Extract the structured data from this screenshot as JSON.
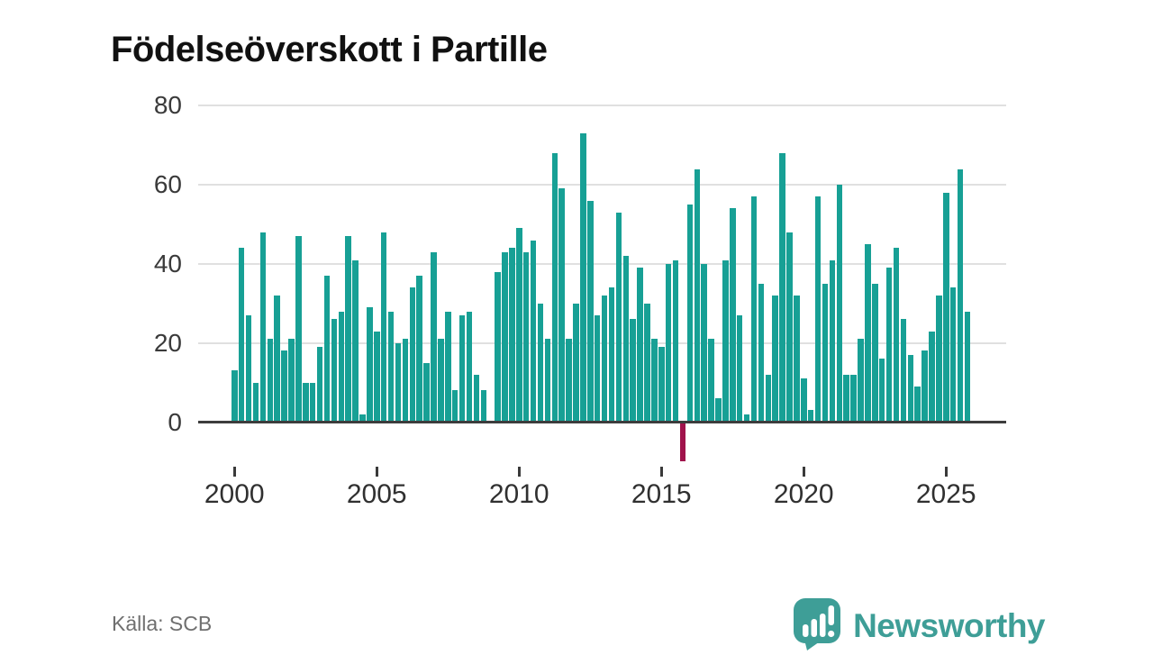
{
  "title": "Födelseöverskott i Partille",
  "source": "Källa: SCB",
  "brand": {
    "name": "Newsworthy"
  },
  "chart_data": {
    "type": "bar",
    "title": "Födelseöverskott i Partille",
    "xlabel": "",
    "ylabel": "",
    "frequency": "quarterly",
    "start_period": "2000 Q1",
    "x_tick_labels": [
      "2000",
      "2005",
      "2010",
      "2015",
      "2020",
      "2025"
    ],
    "y_ticks": [
      0,
      20,
      40,
      60,
      80
    ],
    "ylim": [
      -12,
      85
    ],
    "grid": "horizontal",
    "legend": "none",
    "colors": {
      "positive": "#17a095",
      "negative": "#a0134b"
    },
    "series": [
      {
        "name": "Födelseöverskott",
        "years": [
          {
            "year": 2000,
            "values": [
              13,
              44,
              27,
              10
            ]
          },
          {
            "year": 2001,
            "values": [
              48,
              21,
              32,
              18
            ]
          },
          {
            "year": 2002,
            "values": [
              21,
              47,
              10,
              10
            ]
          },
          {
            "year": 2003,
            "values": [
              19,
              37,
              26,
              28
            ]
          },
          {
            "year": 2004,
            "values": [
              47,
              41,
              2,
              29
            ]
          },
          {
            "year": 2005,
            "values": [
              23,
              48,
              28,
              20
            ]
          },
          {
            "year": 2006,
            "values": [
              21,
              34,
              37,
              15
            ]
          },
          {
            "year": 2007,
            "values": [
              43,
              21,
              28,
              8
            ]
          },
          {
            "year": 2008,
            "values": [
              27,
              28,
              12,
              8
            ]
          },
          {
            "year": 2009,
            "values": [
              0,
              38,
              43,
              44
            ]
          },
          {
            "year": 2010,
            "values": [
              49,
              43,
              46,
              30
            ]
          },
          {
            "year": 2011,
            "values": [
              21,
              68,
              59,
              21
            ]
          },
          {
            "year": 2012,
            "values": [
              30,
              73,
              56,
              27
            ]
          },
          {
            "year": 2013,
            "values": [
              32,
              34,
              53,
              42
            ]
          },
          {
            "year": 2014,
            "values": [
              26,
              39,
              30,
              21
            ]
          },
          {
            "year": 2015,
            "values": [
              19,
              40,
              41,
              -10
            ]
          },
          {
            "year": 2016,
            "values": [
              55,
              64,
              40,
              21
            ]
          },
          {
            "year": 2017,
            "values": [
              6,
              41,
              54,
              27
            ]
          },
          {
            "year": 2018,
            "values": [
              2,
              57,
              35,
              12
            ]
          },
          {
            "year": 2019,
            "values": [
              32,
              68,
              48,
              32
            ]
          },
          {
            "year": 2020,
            "values": [
              11,
              3,
              57,
              35
            ]
          },
          {
            "year": 2021,
            "values": [
              41,
              60,
              12,
              12
            ]
          },
          {
            "year": 2022,
            "values": [
              21,
              45,
              35,
              16
            ]
          },
          {
            "year": 2023,
            "values": [
              39,
              44,
              26,
              17
            ]
          },
          {
            "year": 2024,
            "values": [
              9,
              18,
              23,
              32
            ]
          },
          {
            "year": 2025,
            "values": [
              58,
              34,
              64,
              28
            ]
          }
        ]
      }
    ]
  }
}
